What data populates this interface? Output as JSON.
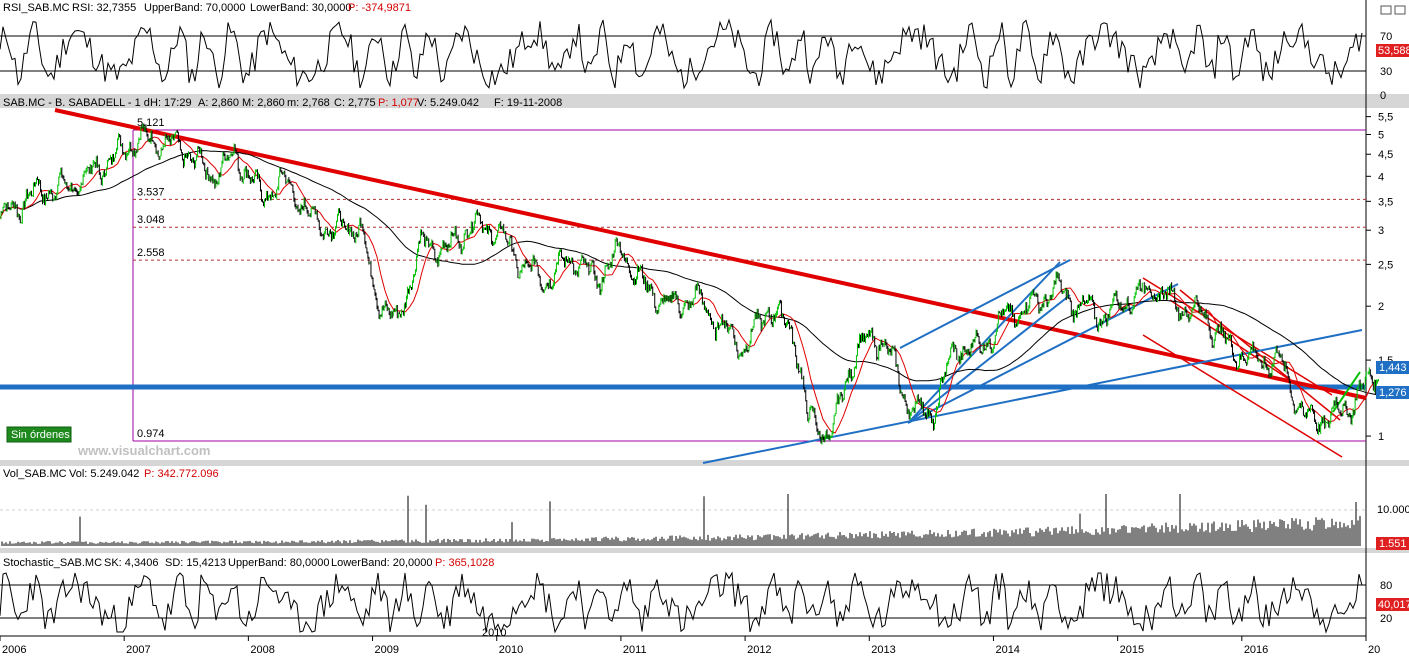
{
  "panels": {
    "rsi": {
      "header": {
        "name": "RSI_SAB.MC",
        "rsi": "RSI: 32,7355",
        "upper": "UpperBand: 70,0000",
        "lower": "LowerBand: 30,0000",
        "p": "P: -374,9871"
      },
      "axis_labels": [
        "70",
        "30",
        "0"
      ],
      "current_label": "53,588"
    },
    "price": {
      "header": {
        "name": "SAB.MC - B. SABADELL - 1 d",
        "h": "H: 17:29",
        "a": "A: 2,860",
        "m": "M: 2,860",
        "mm": "m: 2,768",
        "c": "C: 2,775",
        "p": "P: 1,077",
        "v": "V: 5.249.042",
        "f": "F: 19-11-2008"
      },
      "axis_labels": [
        "5,5",
        "5",
        "4,5",
        "4",
        "3,5",
        "3",
        "2,5",
        "2",
        "1,5",
        "1"
      ],
      "levels": [
        "5.121",
        "3.537",
        "3.048",
        "2.558",
        "0.974"
      ],
      "current_labels": [
        "1,443",
        "1,276"
      ],
      "badge": "Sin órdenes",
      "watermark": "www.visualchart.com"
    },
    "volume": {
      "header": {
        "name": "Vol_SAB.MC",
        "vol": "Vol: 5.249.042",
        "p": "P: 342.772.096"
      },
      "axis_labels": [
        "10.000"
      ],
      "current_label": "1.551"
    },
    "stochastic": {
      "header": {
        "name": "Stochastic_SAB.MC",
        "sk": "SK: 4,3406",
        "sd": "SD: 15,4213",
        "upper": "UpperBand: 80,0000",
        "lower": "LowerBand: 20,0000",
        "p": "P: 365,1028"
      },
      "axis_labels": [
        "80",
        "20"
      ],
      "current_label": "40,017",
      "inner_label": "2010"
    }
  },
  "time_axis": [
    "2006",
    "2007",
    "2008",
    "2009",
    "2010",
    "2011",
    "2012",
    "2013",
    "2014",
    "2015",
    "2016",
    "20"
  ],
  "colors": {
    "price_up": "#00c000",
    "price_down": "#000000",
    "ma_fast": "#e00000",
    "ma_slow": "#000000",
    "trend_red": "#e00000",
    "trend_blue": "#1f6fc4",
    "support": "#1f6fc4",
    "level_line": "#a000a0",
    "badge_bg": "#1e8a1e"
  },
  "chart_data": {
    "type": "line",
    "title": "SAB.MC - B. SABADELL - 1 d",
    "x_range": [
      2006,
      2017
    ],
    "ylim": [
      0.9,
      5.5
    ],
    "x": [
      2006.0,
      2006.3,
      2006.6,
      2006.9,
      2007.1,
      2007.3,
      2007.5,
      2007.7,
      2007.9,
      2008.1,
      2008.3,
      2008.5,
      2008.7,
      2008.9,
      2009.0,
      2009.2,
      2009.4,
      2009.6,
      2009.8,
      2010.0,
      2010.2,
      2010.4,
      2010.6,
      2010.8,
      2011.0,
      2011.2,
      2011.4,
      2011.6,
      2011.8,
      2012.0,
      2012.2,
      2012.4,
      2012.5,
      2012.7,
      2012.9,
      2013.1,
      2013.3,
      2013.5,
      2013.7,
      2013.9,
      2014.1,
      2014.3,
      2014.5,
      2014.7,
      2014.9,
      2015.1,
      2015.3,
      2015.5,
      2015.7,
      2015.9,
      2016.1,
      2016.3,
      2016.5,
      2016.7,
      2016.9,
      2017.1
    ],
    "series": [
      {
        "values": [
          3.2,
          3.7,
          3.8,
          4.4,
          4.9,
          4.8,
          4.6,
          4.0,
          4.5,
          3.6,
          3.9,
          3.2,
          3.0,
          3.1,
          2.2,
          1.8,
          2.8,
          2.7,
          3.1,
          3.0,
          2.5,
          2.3,
          2.6,
          2.3,
          2.7,
          2.2,
          2.0,
          2.1,
          1.8,
          1.6,
          2.0,
          1.7,
          1.1,
          1.0,
          1.6,
          1.7,
          1.2,
          1.1,
          1.6,
          1.6,
          1.9,
          2.0,
          2.2,
          2.0,
          1.9,
          2.1,
          2.2,
          2.0,
          1.9,
          1.6,
          1.5,
          1.5,
          1.1,
          1.1,
          1.2,
          1.43
        ]
      }
    ],
    "level_lines": [
      5.121,
      3.537,
      3.048,
      2.558,
      0.974
    ],
    "support_level": 1.276
  }
}
